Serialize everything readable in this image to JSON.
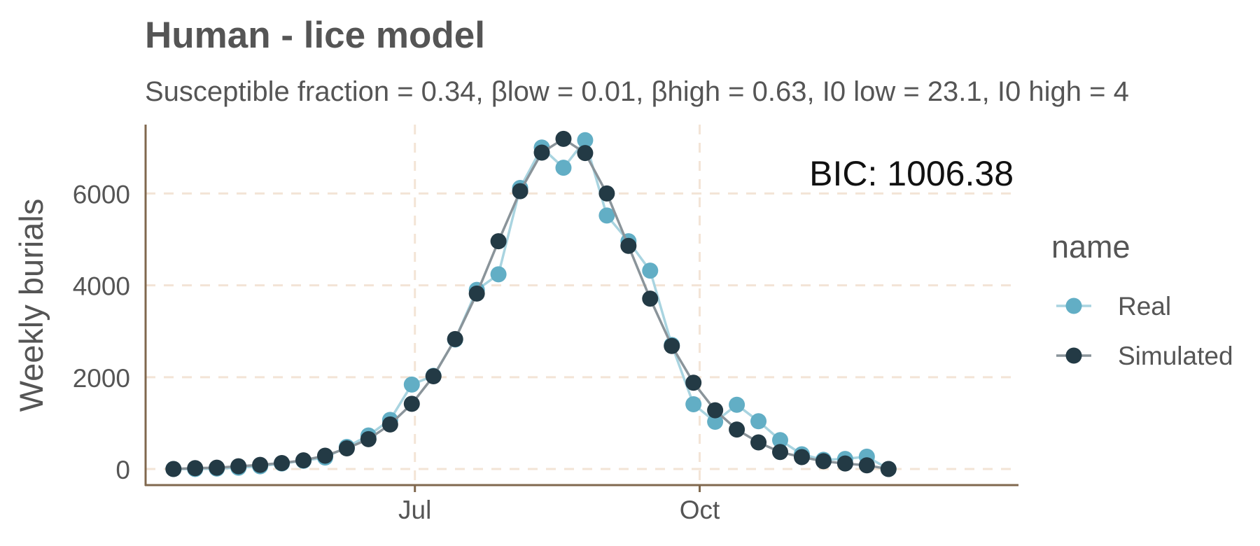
{
  "chart_data": {
    "type": "line",
    "title": "Human - lice model",
    "subtitle": "Susceptible fraction = 0.34, βlow = 0.01, βhigh = 0.63, I0 low = 23.1, I0 high = 4",
    "xlabel": "",
    "ylabel": "Weekly burials",
    "x_tick_labels": [
      "Jul",
      "Oct"
    ],
    "x_ticks": [
      "1900-07-01",
      "1900-10-01"
    ],
    "xlim": [
      "1900-04-05",
      "1901-01-12"
    ],
    "y_ticks": [
      0,
      2000,
      4000,
      6000
    ],
    "ylim": [
      -350,
      7500
    ],
    "grid": true,
    "legend_title": "name",
    "legend_position": "right",
    "annotation": "BIC: 1006.38",
    "x": [
      "1900-04-14",
      "1900-04-21",
      "1900-04-28",
      "1900-05-05",
      "1900-05-12",
      "1900-05-19",
      "1900-05-26",
      "1900-06-02",
      "1900-06-09",
      "1900-06-16",
      "1900-06-23",
      "1900-06-30",
      "1900-07-07",
      "1900-07-14",
      "1900-07-21",
      "1900-07-28",
      "1900-08-04",
      "1900-08-11",
      "1900-08-18",
      "1900-08-25",
      "1900-09-01",
      "1900-09-08",
      "1900-09-15",
      "1900-09-22",
      "1900-09-29",
      "1900-10-06",
      "1900-10-13",
      "1900-10-20",
      "1900-10-27",
      "1900-11-03",
      "1900-11-10",
      "1900-11-17",
      "1900-11-24",
      "1900-12-01"
    ],
    "series": [
      {
        "name": "Real",
        "color": "#62aec5",
        "values": [
          0,
          0,
          10,
          30,
          60,
          120,
          180,
          250,
          480,
          730,
          1070,
          1840,
          2030,
          2820,
          3900,
          4240,
          6120,
          7000,
          6560,
          7160,
          5520,
          4960,
          4320,
          2700,
          1410,
          1030,
          1400,
          1040,
          630,
          320,
          200,
          220,
          270,
          0
        ]
      },
      {
        "name": "Simulated",
        "color": "#233a45",
        "values": [
          0,
          20,
          30,
          60,
          90,
          130,
          190,
          290,
          450,
          650,
          970,
          1420,
          2020,
          2830,
          3820,
          4960,
          6050,
          6890,
          7190,
          6880,
          6000,
          4860,
          3710,
          2680,
          1880,
          1280,
          860,
          580,
          370,
          260,
          170,
          120,
          80,
          0
        ]
      }
    ]
  },
  "colors": {
    "axis": "#80684e",
    "grid": "#f3e4d6"
  }
}
